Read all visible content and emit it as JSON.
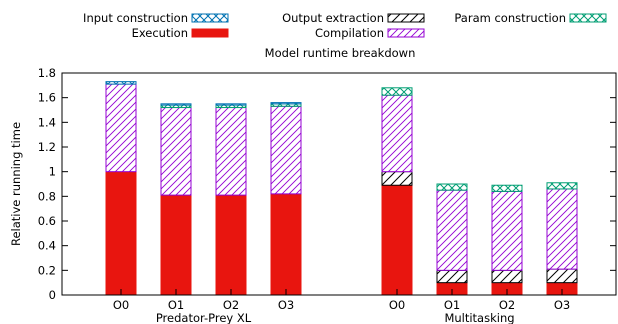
{
  "chart_data": {
    "type": "bar",
    "stacked": true,
    "title": "Model runtime breakdown",
    "ylabel": "Relative running time",
    "xlabel": "",
    "ylim": [
      0,
      1.8
    ],
    "yticks": [
      "0",
      "0.2",
      "0.4",
      "0.6",
      "0.8",
      "1",
      "1.2",
      "1.4",
      "1.6",
      "1.8"
    ],
    "groups": [
      {
        "name": "Predator-Prey XL",
        "categories": [
          "O0",
          "O1",
          "O2",
          "O3"
        ]
      },
      {
        "name": "Multitasking",
        "categories": [
          "O0",
          "O1",
          "O2",
          "O3"
        ]
      }
    ],
    "series": [
      {
        "name": "Execution",
        "color": "#e8150f",
        "pattern": "solid",
        "values": [
          1.0,
          0.81,
          0.81,
          0.82,
          0.89,
          0.1,
          0.1,
          0.1
        ]
      },
      {
        "name": "Output extraction",
        "color": "#000000",
        "pattern": "diagonal",
        "values": [
          0.0,
          0.0,
          0.0,
          0.0,
          0.11,
          0.1,
          0.1,
          0.11
        ]
      },
      {
        "name": "Compilation",
        "color": "#9400d3",
        "pattern": "diagonal-dense",
        "values": [
          0.71,
          0.71,
          0.71,
          0.71,
          0.62,
          0.65,
          0.64,
          0.65
        ]
      },
      {
        "name": "Param construction",
        "color": "#009e73",
        "pattern": "crosshatch",
        "values": [
          0.0,
          0.02,
          0.02,
          0.02,
          0.06,
          0.05,
          0.05,
          0.05
        ]
      },
      {
        "name": "Input construction",
        "color": "#0072b2",
        "pattern": "crosshatch",
        "values": [
          0.02,
          0.01,
          0.01,
          0.01,
          0.0,
          0.0,
          0.0,
          0.0
        ]
      }
    ],
    "legend": {
      "order": [
        "Input construction",
        "Execution",
        "Output extraction",
        "Compilation",
        "Param construction"
      ],
      "placement": "top"
    },
    "grid": false
  }
}
